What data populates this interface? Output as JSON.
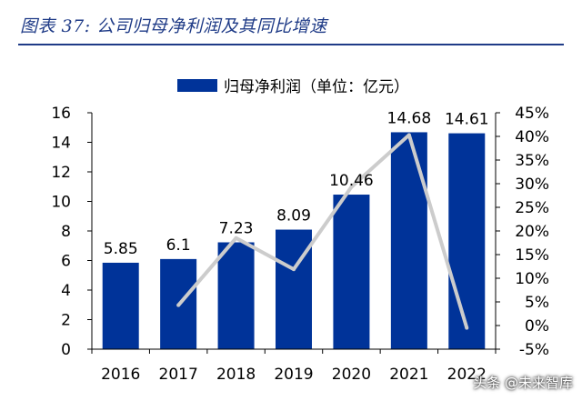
{
  "figure": {
    "title": "图表 37:  公司归母净利润及其同比增速",
    "watermark": "头条 @未来智库"
  },
  "colors": {
    "title": "#1f3b87",
    "bar": "#003399",
    "line": "#cccccc",
    "axis": "#000000",
    "text": "#000000"
  },
  "chart_data": {
    "type": "bar",
    "categories": [
      "2016",
      "2017",
      "2018",
      "2019",
      "2020",
      "2021",
      "2022"
    ],
    "series": [
      {
        "name": "归母净利润（单位：亿元）",
        "type": "bar",
        "axis": "left",
        "values": [
          5.85,
          6.1,
          7.23,
          8.09,
          10.46,
          14.68,
          14.61
        ],
        "data_labels": [
          "5.85",
          "6.1",
          "7.23",
          "8.09",
          "10.46",
          "14.68",
          "14.61"
        ]
      },
      {
        "type": "line",
        "axis": "right",
        "values": [
          null,
          0.043,
          0.185,
          0.119,
          0.293,
          0.403,
          -0.005
        ]
      }
    ],
    "y_left": {
      "lim": [
        0,
        16
      ],
      "ticks": [
        0,
        2,
        4,
        6,
        8,
        10,
        12,
        14,
        16
      ],
      "tick_labels": [
        "0",
        "2",
        "4",
        "6",
        "8",
        "10",
        "12",
        "14",
        "16"
      ]
    },
    "y_right": {
      "lim": [
        -0.05,
        0.45
      ],
      "ticks": [
        -0.05,
        0,
        0.05,
        0.1,
        0.15,
        0.2,
        0.25,
        0.3,
        0.35,
        0.4,
        0.45
      ],
      "tick_labels": [
        "-5%",
        "0%",
        "5%",
        "10%",
        "15%",
        "20%",
        "25%",
        "30%",
        "35%",
        "40%",
        "45%"
      ]
    },
    "grid": false,
    "legend": "top-center"
  }
}
